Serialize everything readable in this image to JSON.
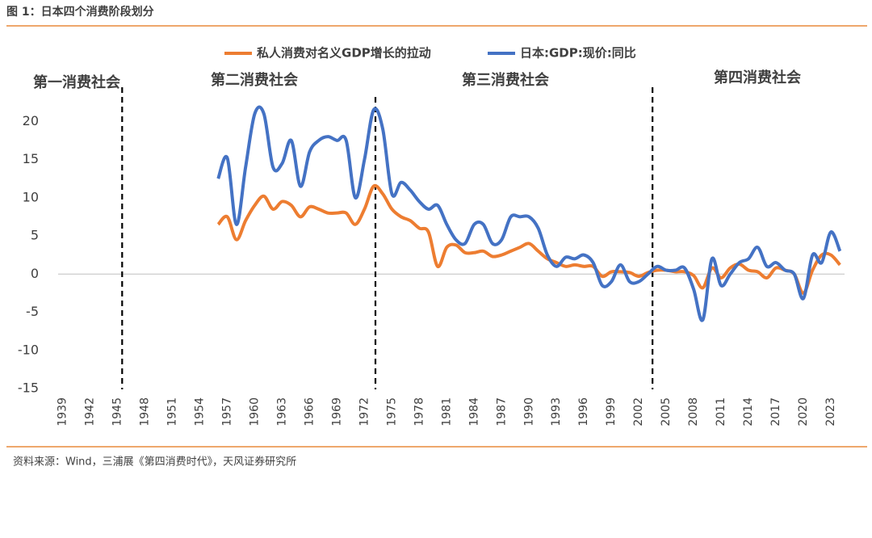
{
  "header": {
    "title": "图 1：日本四个消费阶段划分"
  },
  "chart_data": {
    "type": "line",
    "x": [
      1956,
      1957,
      1958,
      1959,
      1960,
      1961,
      1962,
      1963,
      1964,
      1965,
      1966,
      1967,
      1968,
      1969,
      1970,
      1971,
      1972,
      1973,
      1974,
      1975,
      1976,
      1977,
      1978,
      1979,
      1980,
      1981,
      1982,
      1983,
      1984,
      1985,
      1986,
      1987,
      1988,
      1989,
      1990,
      1991,
      1992,
      1993,
      1994,
      1995,
      1996,
      1997,
      1998,
      1999,
      2000,
      2001,
      2002,
      2003,
      2004,
      2005,
      2006,
      2007,
      2008,
      2009,
      2010,
      2011,
      2012,
      2013,
      2014,
      2015,
      2016,
      2017,
      2018,
      2019,
      2020,
      2021,
      2022,
      2023,
      2024
    ],
    "series": [
      {
        "name": "私人消费对名义GDP增长的拉动",
        "color": "#ed7d31",
        "values": [
          6.5,
          7.5,
          4.5,
          7,
          9,
          10.2,
          8.5,
          9.5,
          9,
          7.5,
          8.8,
          8.5,
          8,
          8,
          8,
          6.5,
          8.5,
          11.5,
          10.5,
          8.5,
          7.5,
          7,
          6,
          5.5,
          1,
          3.5,
          3.8,
          2.8,
          2.8,
          3,
          2.3,
          2.5,
          3,
          3.5,
          4,
          3,
          2,
          1.5,
          1,
          1.2,
          1,
          1,
          -0.3,
          0.3,
          0.3,
          0.2,
          -0.3,
          0.2,
          0.5,
          0.5,
          0.3,
          0.3,
          -0.2,
          -1.8,
          0.8,
          -0.5,
          0.8,
          1.3,
          0.5,
          0.3,
          -0.5,
          0.8,
          0.5,
          0,
          -2.5,
          0.5,
          2.5,
          2.5,
          1.2
        ]
      },
      {
        "name": "日本:GDP:现价:同比",
        "color": "#4472c4",
        "values": [
          12.5,
          15.2,
          6.5,
          14,
          21,
          21,
          14,
          14.5,
          17.5,
          11.5,
          16,
          17.5,
          18,
          17.5,
          17.5,
          10,
          15,
          21.5,
          19,
          10.5,
          12,
          11,
          9.5,
          8.5,
          9,
          6.5,
          4.5,
          4,
          6.5,
          6.5,
          4,
          4.5,
          7.5,
          7.5,
          7.5,
          6,
          2.5,
          1,
          2.2,
          2,
          2.5,
          1.5,
          -1.5,
          -1,
          1.2,
          -1,
          -1,
          0,
          1,
          0.5,
          0.5,
          0.8,
          -2,
          -6,
          2,
          -1.5,
          0,
          1.5,
          2,
          3.5,
          1,
          1.5,
          0.5,
          0,
          -3.2,
          2.5,
          1.5,
          5.5,
          3
        ]
      }
    ],
    "xlim": [
      1938.5,
      2024.5
    ],
    "xticks": [
      1939,
      1942,
      1945,
      1948,
      1951,
      1954,
      1957,
      1960,
      1963,
      1966,
      1969,
      1972,
      1975,
      1978,
      1981,
      1984,
      1987,
      1990,
      1993,
      1996,
      1999,
      2002,
      2005,
      2008,
      2011,
      2014,
      2017,
      2020,
      2023
    ],
    "ylim": [
      -15,
      25
    ],
    "yticks": [
      -15,
      -10,
      -5,
      0,
      5,
      10,
      15,
      20
    ],
    "dividers": [
      1945.5,
      1973.2,
      2003.5
    ],
    "annotations": [
      "第一消费社会",
      "第二消费社会",
      "第三消费社会",
      "第四消费社会"
    ]
  },
  "footer": {
    "source": "资料来源：Wind，三浦展《第四消费时代》，天风证券研究所"
  }
}
